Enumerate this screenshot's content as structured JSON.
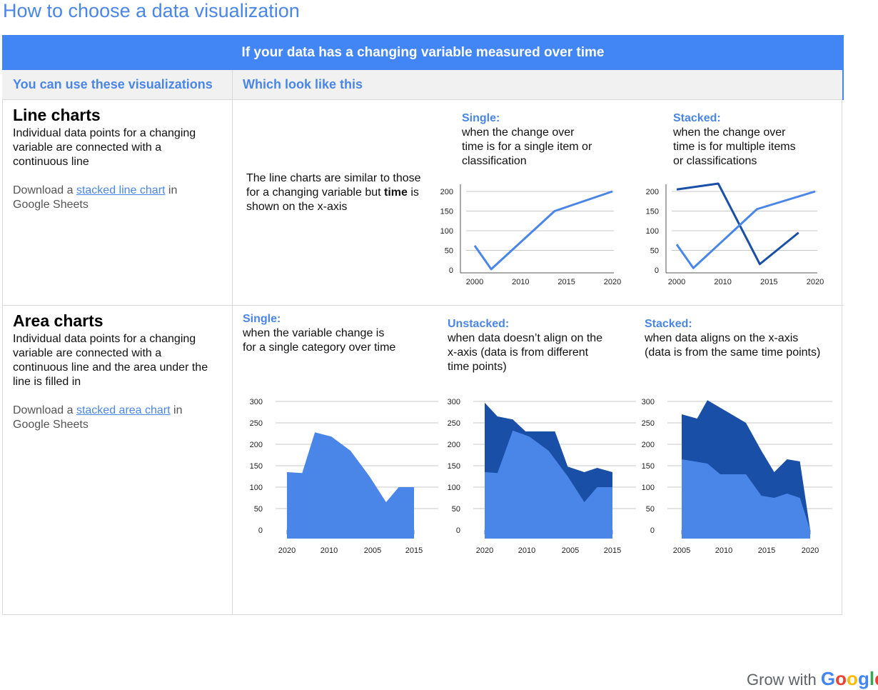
{
  "page": {
    "title": "How to choose a data visualization",
    "banner": "If your data has a changing variable measured over time",
    "col1_header": "You can use these visualizations",
    "col2_header": "Which look like this"
  },
  "line_section": {
    "title": "Line charts",
    "description": "Individual data points for a changing variable are connected with a continuous line",
    "download_prefix": "Download a ",
    "download_link": "stacked line chart",
    "download_suffix": " in Google Sheets",
    "explain_prefix": "The line charts are similar to those for a changing variable but ",
    "explain_bold": "time",
    "explain_suffix": " is shown on the x-axis",
    "single_label": "Single:",
    "single_text": "when the change over time is for a single item or classification",
    "stacked_label": "Stacked:",
    "stacked_text": "when the change over time is for multiple items or classifications"
  },
  "area_section": {
    "title": "Area charts",
    "description": "Individual data points for a changing variable are connected with a continuous line and the area under the line is filled in",
    "download_prefix": "Download a ",
    "download_link": "stacked area chart",
    "download_suffix": " in Google Sheets",
    "single_label": "Single:",
    "single_text": "when the variable change is for a single category over time",
    "unstacked_label": "Unstacked:",
    "unstacked_text": "when data doesn’t align on the x-axis (data is from different time points)",
    "stacked_label": "Stacked:",
    "stacked_text": "when data aligns on the x-axis (data is from the same time points)"
  },
  "brand": {
    "prefix": "Grow with ",
    "name": "Google"
  },
  "colors": {
    "accent": "#4285f4",
    "dark_series": "#1a4fa8",
    "light_series": "#4a86e8"
  },
  "chart_data": [
    {
      "id": "line_single",
      "type": "line",
      "x_ticks": [
        "2000",
        "2010",
        "2015",
        "2020"
      ],
      "y_ticks": [
        "200",
        "150",
        "100",
        "50",
        "0"
      ],
      "ylim": [
        0,
        200
      ],
      "grid": true,
      "series": [
        {
          "values": [
            [
              0,
              62
            ],
            [
              0.12,
              2
            ],
            [
              0.58,
              150
            ],
            [
              1,
              200
            ]
          ]
        }
      ]
    },
    {
      "id": "line_stacked",
      "type": "line",
      "x_ticks": [
        "2000",
        "2010",
        "2015",
        "2020"
      ],
      "y_ticks": [
        "200",
        "150",
        "100",
        "50",
        "0"
      ],
      "ylim": [
        0,
        200
      ],
      "grid": true,
      "series": [
        {
          "values": [
            [
              0,
              205
            ],
            [
              0.3,
              220
            ],
            [
              0.6,
              15
            ],
            [
              0.88,
              95
            ]
          ]
        },
        {
          "values": [
            [
              0,
              65
            ],
            [
              0.12,
              5
            ],
            [
              0.58,
              155
            ],
            [
              1,
              200
            ]
          ]
        }
      ]
    },
    {
      "id": "area_single",
      "type": "area",
      "x_ticks": [
        "2020",
        "2010",
        "2005",
        "2015"
      ],
      "y_ticks": [
        "300",
        "250",
        "200",
        "150",
        "100",
        "50",
        "0"
      ],
      "ylim": [
        0,
        300
      ],
      "grid": true,
      "series": [
        {
          "values": [
            [
              0,
              135
            ],
            [
              0.12,
              133
            ],
            [
              0.22,
              228
            ],
            [
              0.35,
              218
            ],
            [
              0.5,
              185
            ],
            [
              0.65,
              125
            ],
            [
              0.78,
              65
            ],
            [
              0.88,
              100
            ],
            [
              1,
              100
            ]
          ]
        }
      ]
    },
    {
      "id": "area_unstacked",
      "type": "area",
      "x_ticks": [
        "2020",
        "2010",
        "2005",
        "2015"
      ],
      "y_ticks": [
        "300",
        "250",
        "200",
        "150",
        "100",
        "50",
        "0"
      ],
      "ylim": [
        0,
        300
      ],
      "grid": true,
      "series": [
        {
          "values": [
            [
              0,
              297
            ],
            [
              0.1,
              265
            ],
            [
              0.22,
              258
            ],
            [
              0.32,
              230
            ],
            [
              0.55,
              230
            ],
            [
              0.65,
              148
            ],
            [
              0.78,
              135
            ],
            [
              0.88,
              145
            ],
            [
              1,
              135
            ]
          ]
        },
        {
          "values": [
            [
              0,
              135
            ],
            [
              0.1,
              133
            ],
            [
              0.22,
              232
            ],
            [
              0.35,
              218
            ],
            [
              0.5,
              185
            ],
            [
              0.65,
              125
            ],
            [
              0.78,
              65
            ],
            [
              0.88,
              100
            ],
            [
              1,
              100
            ]
          ]
        }
      ]
    },
    {
      "id": "area_stacked",
      "type": "area",
      "x_ticks": [
        "2005",
        "2010",
        "2015",
        "2020"
      ],
      "y_ticks": [
        "300",
        "250",
        "200",
        "150",
        "100",
        "50",
        "0"
      ],
      "ylim": [
        0,
        300
      ],
      "grid": true,
      "series": [
        {
          "values": [
            [
              0,
              270
            ],
            [
              0.12,
              260
            ],
            [
              0.2,
              303
            ],
            [
              0.5,
              250
            ],
            [
              0.62,
              185
            ],
            [
              0.72,
              135
            ],
            [
              0.82,
              165
            ],
            [
              0.92,
              160
            ],
            [
              1,
              0
            ]
          ]
        },
        {
          "values": [
            [
              0,
              165
            ],
            [
              0.2,
              155
            ],
            [
              0.3,
              130
            ],
            [
              0.5,
              130
            ],
            [
              0.62,
              80
            ],
            [
              0.72,
              75
            ],
            [
              0.82,
              85
            ],
            [
              0.92,
              75
            ],
            [
              1,
              0
            ]
          ]
        }
      ]
    }
  ]
}
